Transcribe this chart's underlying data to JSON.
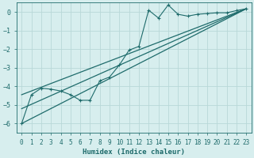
{
  "bg_color": "#d7eeee",
  "grid_color": "#b8d8d8",
  "line_color": "#1e6b6b",
  "xlabel": "Humidex (Indice chaleur)",
  "ylim": [
    -6.5,
    0.5
  ],
  "xlim": [
    -0.5,
    23.5
  ],
  "yticks": [
    0,
    -1,
    -2,
    -3,
    -4,
    -5,
    -6
  ],
  "xticks": [
    0,
    1,
    2,
    3,
    4,
    5,
    6,
    7,
    8,
    9,
    10,
    11,
    12,
    13,
    14,
    15,
    16,
    17,
    18,
    19,
    20,
    21,
    22,
    23
  ],
  "scatter_x": [
    0,
    1,
    2,
    3,
    4,
    5,
    6,
    7,
    8,
    9,
    10,
    11,
    12,
    13,
    14,
    15,
    16,
    17,
    18,
    19,
    20,
    21,
    22,
    23
  ],
  "scatter_y": [
    -6.0,
    -4.45,
    -4.1,
    -4.15,
    -4.25,
    -4.45,
    -4.75,
    -4.75,
    -3.7,
    -3.5,
    -2.85,
    -2.05,
    -1.85,
    0.1,
    -0.32,
    0.38,
    -0.12,
    -0.22,
    -0.12,
    -0.08,
    -0.04,
    -0.04,
    0.08,
    0.18
  ],
  "line1_x": [
    0,
    23
  ],
  "line1_y": [
    -6.0,
    0.18
  ],
  "line2_x": [
    0,
    23
  ],
  "line2_y": [
    -4.45,
    0.18
  ],
  "line3_x": [
    0,
    23
  ],
  "line3_y": [
    -5.2,
    0.18
  ]
}
